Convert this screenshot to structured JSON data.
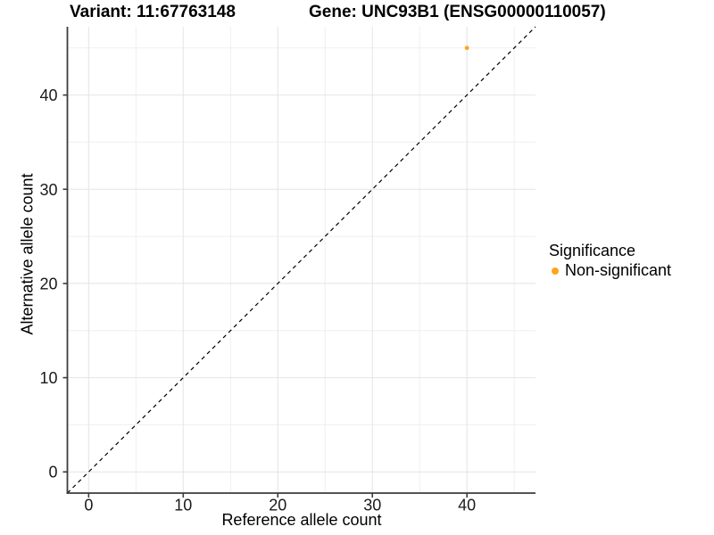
{
  "chart_data": {
    "type": "scatter",
    "title_left": "Variant: 11:67763148",
    "title_right": "Gene: UNC93B1 (ENSG00000110057)",
    "xlabel": "Reference allele count",
    "ylabel": "Alternative allele count",
    "xlim": [
      -2.25,
      47.25
    ],
    "ylim": [
      -2.25,
      47.25
    ],
    "x_major_ticks": [
      0,
      10,
      20,
      30,
      40
    ],
    "y_major_ticks": [
      0,
      10,
      20,
      30,
      40
    ],
    "x_minor_ticks": [
      5,
      15,
      25,
      35,
      45
    ],
    "y_minor_ticks": [
      5,
      15,
      25,
      35,
      45
    ],
    "grid": true,
    "identity_line": {
      "equation": "y = x",
      "style": "dashed",
      "color": "#000000"
    },
    "series": [
      {
        "name": "Non-significant",
        "color": "#FFA51E",
        "points": [
          {
            "x": 40,
            "y": 45
          }
        ]
      }
    ],
    "legend": {
      "title": "Significance",
      "position": "right",
      "items": [
        {
          "label": "Non-significant",
          "color": "#FFA51E"
        }
      ]
    }
  },
  "colors": {
    "background": "#FFFFFF",
    "grid_major": "#E4E4E4",
    "grid_minor": "#EFEFEF",
    "axis_line": "#3C3C3C",
    "tick_mark": "#3C3C3C",
    "dashed_line": "#000000",
    "point_orange": "#FFA51E",
    "text": "#000000"
  }
}
